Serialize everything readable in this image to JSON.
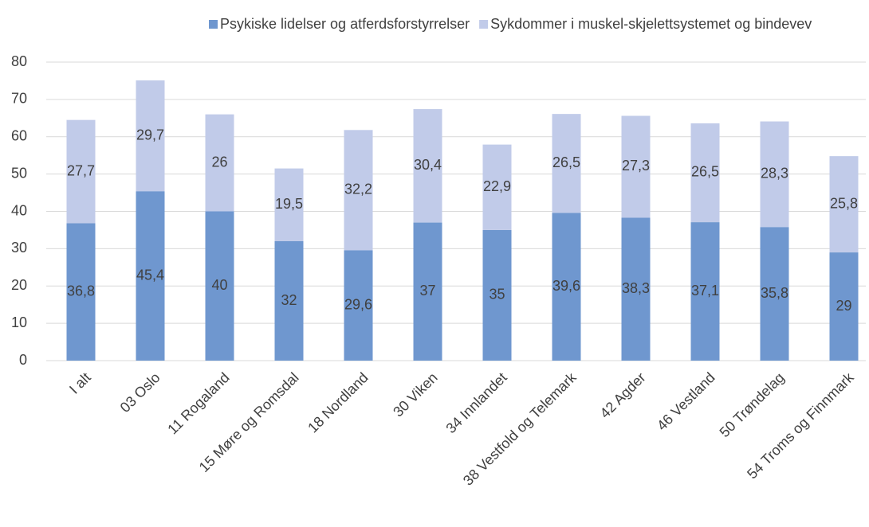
{
  "chart_data": {
    "type": "stacked_bar",
    "categories": [
      "I alt",
      "03 Oslo",
      "11 Rogaland",
      "15 Møre og Romsdal",
      "18 Nordland",
      "30 Viken",
      "34 Innlandet",
      "38 Vestfold og Telemark",
      "42 Agder",
      "46 Vestland",
      "50 Trøndelag",
      "54 Troms og Finnmark"
    ],
    "series": [
      {
        "name": "Psykiske lidelser og atferdsforstyrrelser",
        "color": "#6f97cf",
        "values": [
          36.8,
          45.4,
          40,
          32,
          29.6,
          37,
          35,
          39.6,
          38.3,
          37.1,
          35.8,
          29
        ],
        "value_labels": [
          "36,8",
          "45,4",
          "40",
          "32",
          "29,6",
          "37",
          "35",
          "39,6",
          "38,3",
          "37,1",
          "35,8",
          "29"
        ]
      },
      {
        "name": "Sykdommer i muskel-skjelettsystemet og bindevev",
        "color": "#c1cbe9",
        "values": [
          27.7,
          29.7,
          26,
          19.5,
          32.2,
          30.4,
          22.9,
          26.5,
          27.3,
          26.5,
          28.3,
          25.8
        ],
        "value_labels": [
          "27,7",
          "29,7",
          "26",
          "19,5",
          "32,2",
          "30,4",
          "22,9",
          "26,5",
          "27,3",
          "26,5",
          "28,3",
          "25,8"
        ]
      }
    ],
    "ylim": [
      0,
      80
    ],
    "yticks": [
      0,
      10,
      20,
      30,
      40,
      50,
      60,
      70,
      80
    ],
    "grid": true,
    "legend": "top"
  }
}
